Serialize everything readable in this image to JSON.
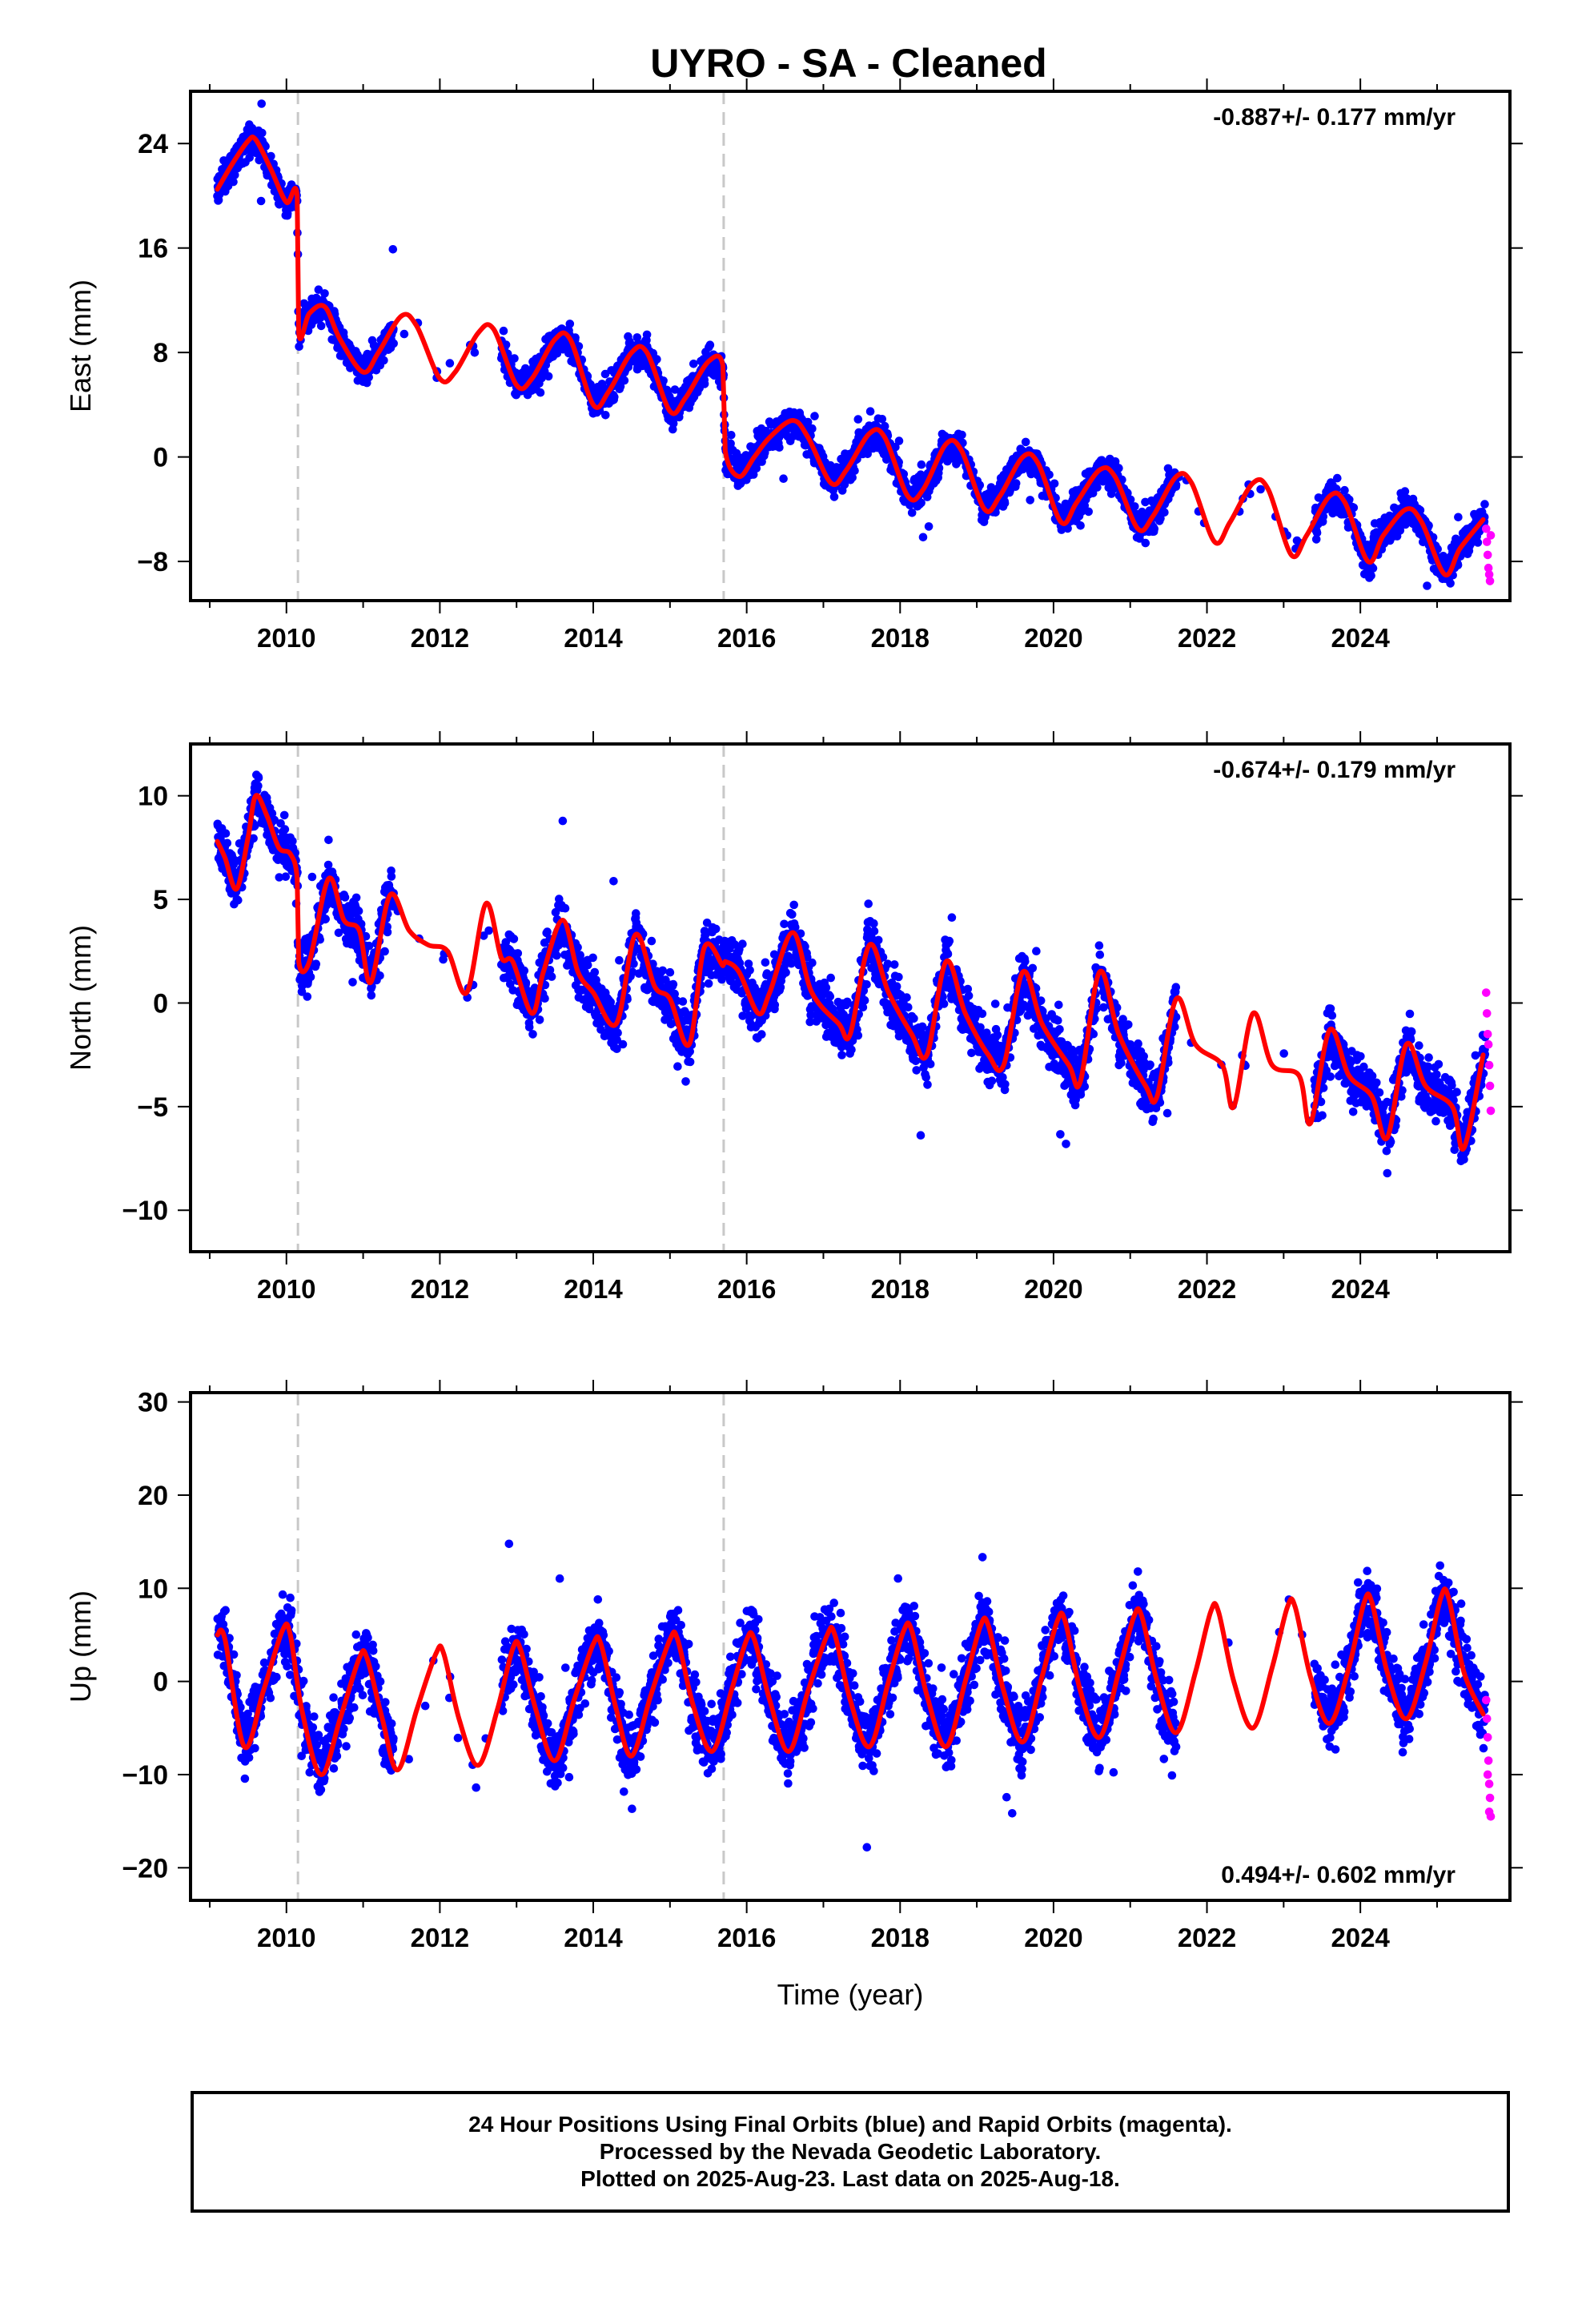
{
  "title": "UYRO  - SA - Cleaned",
  "caption": {
    "line1": "24 Hour Positions Using Final Orbits (blue) and Rapid Orbits (magenta).",
    "line2": "Processed by the Nevada Geodetic Laboratory.",
    "line3": "Plotted on 2025-Aug-23. Last data on 2025-Aug-18."
  },
  "colors": {
    "final_orbits": "#0000ff",
    "rapid_orbits": "#ff00ff",
    "model_fit": "#ff0000",
    "event_lines": "#c8c8c8"
  },
  "chart_data": [
    {
      "type": "scatter",
      "panel": "east",
      "ylabel": "East (mm)",
      "xlabel": "",
      "xlim": [
        2008.75,
        2025.95
      ],
      "ylim": [
        -11,
        28
      ],
      "yticks": [
        -8,
        0,
        8,
        16,
        24
      ],
      "xticks": [
        2010,
        2012,
        2014,
        2016,
        2018,
        2020,
        2022,
        2024
      ],
      "rate_label": "-0.887+/- 0.177 mm/yr",
      "rate_position": "top-right",
      "event_lines": [
        2010.15,
        2015.7
      ],
      "data_start": 2009.1,
      "data_end": 2025.63,
      "gaps": [
        [
          2011.4,
          2012.8
        ],
        [
          2021.6,
          2023.4
        ]
      ],
      "series": [
        {
          "role": "fit",
          "color": "#ff0000",
          "x": [
            2009.1,
            2009.3,
            2009.5,
            2009.6,
            2009.8,
            2010.0,
            2010.14,
            2010.16,
            2010.3,
            2010.5,
            2010.7,
            2011.0,
            2011.2,
            2011.5,
            2011.7,
            2012.0,
            2012.2,
            2012.5,
            2012.7,
            2013.0,
            2013.2,
            2013.5,
            2013.7,
            2014.0,
            2014.2,
            2014.5,
            2014.7,
            2015.0,
            2015.2,
            2015.5,
            2015.69,
            2015.72,
            2015.9,
            2016.1,
            2016.3,
            2016.6,
            2016.8,
            2017.1,
            2017.3,
            2017.6,
            2017.8,
            2018.1,
            2018.3,
            2018.6,
            2018.8,
            2019.1,
            2019.3,
            2019.6,
            2019.8,
            2020.1,
            2020.3,
            2020.6,
            2020.8,
            2021.1,
            2021.3,
            2021.6,
            2021.8,
            2022.1,
            2022.3,
            2022.6,
            2022.8,
            2023.1,
            2023.3,
            2023.6,
            2023.8,
            2024.1,
            2024.3,
            2024.6,
            2024.8,
            2025.1,
            2025.3,
            2025.6
          ],
          "y": [
            20.5,
            22.5,
            24.2,
            24.3,
            22,
            19.5,
            20,
            9.5,
            11,
            11.5,
            9,
            6.5,
            8,
            10.8,
            10,
            6,
            6.5,
            9.5,
            9.8,
            5.5,
            6,
            9,
            9,
            4,
            5,
            8,
            8,
            3.5,
            4.5,
            7.3,
            7,
            0.5,
            -1.5,
            0,
            1.5,
            2.8,
            1.5,
            -2,
            -1,
            1.8,
            1.5,
            -3,
            -2.5,
            1,
            0.5,
            -4,
            -3,
            0,
            -0.5,
            -5,
            -3.5,
            -1,
            -1.5,
            -5.5,
            -4.5,
            -1.5,
            -2,
            -6.5,
            -5,
            -2,
            -2.5,
            -7.5,
            -6,
            -3,
            -3.5,
            -8,
            -6,
            -4,
            -5,
            -9,
            -7,
            -4.8
          ]
        },
        {
          "role": "rapid",
          "color": "#ff00ff",
          "x": [
            2025.64,
            2025.65,
            2025.66,
            2025.67,
            2025.68,
            2025.69,
            2025.7
          ],
          "y": [
            -5.5,
            -6.5,
            -7.5,
            -8.5,
            -9,
            -9.5,
            -6
          ]
        }
      ]
    },
    {
      "type": "scatter",
      "panel": "north",
      "ylabel": "North (mm)",
      "xlabel": "",
      "xlim": [
        2008.75,
        2025.95
      ],
      "ylim": [
        -12,
        12.5
      ],
      "yticks": [
        -10,
        -5,
        0,
        5,
        10
      ],
      "xticks": [
        2010,
        2012,
        2014,
        2016,
        2018,
        2020,
        2022,
        2024
      ],
      "rate_label": "-0.674+/- 0.179 mm/yr",
      "rate_position": "top-right",
      "event_lines": [
        2010.15,
        2015.7
      ],
      "data_start": 2009.1,
      "data_end": 2025.63,
      "gaps": [
        [
          2011.4,
          2012.8
        ],
        [
          2021.6,
          2023.4
        ]
      ],
      "series": [
        {
          "role": "fit",
          "color": "#ff0000",
          "x": [
            2009.1,
            2009.2,
            2009.35,
            2009.5,
            2009.6,
            2009.75,
            2009.9,
            2010.05,
            2010.14,
            2010.16,
            2010.3,
            2010.55,
            2010.75,
            2010.95,
            2011.1,
            2011.35,
            2011.6,
            2011.85,
            2012.1,
            2012.35,
            2012.6,
            2012.8,
            2012.95,
            2013.2,
            2013.35,
            2013.6,
            2013.8,
            2014.0,
            2014.3,
            2014.55,
            2014.8,
            2015.0,
            2015.25,
            2015.45,
            2015.69,
            2015.72,
            2015.9,
            2016.15,
            2016.3,
            2016.6,
            2016.85,
            2017.2,
            2017.35,
            2017.6,
            2017.85,
            2018.15,
            2018.35,
            2018.6,
            2018.85,
            2019.15,
            2019.35,
            2019.6,
            2019.85,
            2020.2,
            2020.35,
            2020.6,
            2020.85,
            2021.2,
            2021.35,
            2021.6,
            2021.85,
            2022.2,
            2022.35,
            2022.6,
            2022.85,
            2023.2,
            2023.35,
            2023.6,
            2023.85,
            2024.15,
            2024.35,
            2024.6,
            2024.85,
            2025.2,
            2025.35,
            2025.6
          ],
          "y": [
            7.8,
            7,
            5.5,
            8,
            10,
            9,
            7.5,
            7.2,
            6,
            2,
            2,
            6,
            4,
            3.5,
            1,
            5.2,
            3.5,
            2.8,
            2.5,
            0.5,
            4.8,
            2.2,
            2,
            -0.5,
            1.5,
            4,
            1.5,
            0.5,
            -1,
            3.3,
            0.8,
            0.2,
            -2,
            2.7,
            1.8,
            2,
            1.5,
            -0.5,
            0.5,
            3.4,
            0.5,
            -1,
            -1.5,
            2.8,
            0.5,
            -1.5,
            -2.5,
            2,
            -0.5,
            -2.5,
            -3,
            1.5,
            -1,
            -3,
            -3.8,
            1.5,
            -1.5,
            -4,
            -4.5,
            0.2,
            -2,
            -3,
            -5,
            -0.5,
            -3,
            -3.5,
            -5.8,
            -1.3,
            -3.5,
            -4.5,
            -6.5,
            -2,
            -4,
            -5,
            -7,
            -2.5
          ]
        },
        {
          "role": "rapid",
          "color": "#ff00ff",
          "x": [
            2025.64,
            2025.65,
            2025.66,
            2025.67,
            2025.68,
            2025.69,
            2025.7
          ],
          "y": [
            0.5,
            -0.5,
            -1.5,
            -2,
            -3,
            -4,
            -5.2
          ]
        }
      ]
    },
    {
      "type": "scatter",
      "panel": "up",
      "ylabel": "Up (mm)",
      "xlabel": "Time (year)",
      "xlim": [
        2008.75,
        2025.95
      ],
      "ylim": [
        -23.5,
        31
      ],
      "yticks": [
        -20,
        -10,
        0,
        10,
        20,
        30
      ],
      "xticks": [
        2010,
        2012,
        2014,
        2016,
        2018,
        2020,
        2022,
        2024
      ],
      "rate_label": "0.494+/- 0.602 mm/yr",
      "rate_position": "bottom-right",
      "event_lines": [
        2010.15,
        2015.7
      ],
      "data_start": 2009.1,
      "data_end": 2025.63,
      "gaps": [
        [
          2011.4,
          2012.8
        ],
        [
          2021.6,
          2023.4
        ]
      ],
      "series": [
        {
          "role": "fit",
          "color": "#ff0000",
          "x": [
            2009.1,
            2009.2,
            2009.45,
            2009.7,
            2009.95,
            2010.05,
            2010.2,
            2010.45,
            2010.7,
            2010.95,
            2011.05,
            2011.25,
            2011.45,
            2011.7,
            2011.95,
            2012.05,
            2012.25,
            2012.5,
            2012.75,
            2012.95,
            2013.05,
            2013.25,
            2013.5,
            2013.75,
            2014.0,
            2014.1,
            2014.3,
            2014.5,
            2014.75,
            2015.0,
            2015.1,
            2015.3,
            2015.55,
            2015.8,
            2016.0,
            2016.1,
            2016.3,
            2016.55,
            2016.8,
            2017.05,
            2017.15,
            2017.35,
            2017.6,
            2017.85,
            2018.05,
            2018.15,
            2018.35,
            2018.6,
            2018.85,
            2019.05,
            2019.15,
            2019.35,
            2019.6,
            2019.85,
            2020.05,
            2020.15,
            2020.35,
            2020.6,
            2020.85,
            2021.05,
            2021.15,
            2021.35,
            2021.6,
            2021.85,
            2022.05,
            2022.15,
            2022.35,
            2022.6,
            2022.85,
            2023.05,
            2023.15,
            2023.35,
            2023.6,
            2023.85,
            2024.05,
            2024.15,
            2024.35,
            2024.6,
            2024.85,
            2025.05,
            2025.15,
            2025.35,
            2025.6
          ],
          "y": [
            5,
            4.5,
            -7,
            -1,
            5.5,
            5,
            -3,
            -10,
            -4,
            2.5,
            2.5,
            -4,
            -9.5,
            -3,
            3,
            3,
            -4,
            -9,
            -3,
            3.5,
            3.5,
            -3,
            -8.5,
            -2,
            4,
            4,
            -3,
            -8,
            -1.5,
            4.5,
            4.5,
            -2.5,
            -7.5,
            -1,
            4.5,
            4.5,
            -2,
            -7.5,
            -1,
            5,
            5,
            -2,
            -7,
            0,
            5.5,
            5.5,
            -1.5,
            -7,
            0,
            6,
            6,
            -1,
            -6.5,
            0.5,
            6.5,
            6.5,
            -1,
            -6,
            1,
            7,
            7,
            0,
            -5.5,
            1,
            7.5,
            7.5,
            0,
            -5,
            1.5,
            8,
            8,
            0.5,
            -4.5,
            1.5,
            8.5,
            8.5,
            1,
            -4,
            2,
            9,
            9,
            1,
            -3.5
          ]
        },
        {
          "role": "rapid",
          "color": "#ff00ff",
          "x": [
            2025.64,
            2025.65,
            2025.66,
            2025.67,
            2025.68,
            2025.69,
            2025.7,
            2025.66,
            2025.68
          ],
          "y": [
            -2,
            -4,
            -6,
            -8.5,
            -11,
            -12.5,
            -14.5,
            -10,
            -14
          ]
        }
      ]
    }
  ]
}
